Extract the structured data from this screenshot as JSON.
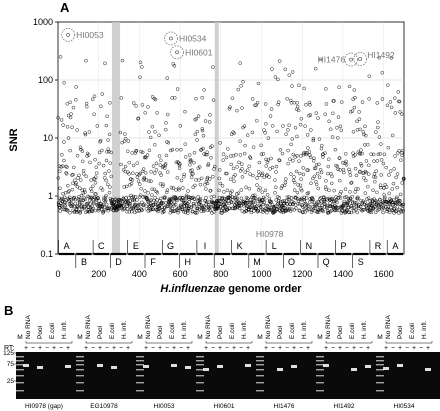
{
  "panel_a": {
    "letter": "A",
    "ylabel": "SNR",
    "xlabel_italic": "H.influenzae",
    "xlabel_rest": " genome order",
    "y_ticks": [
      "1000",
      "100",
      "10",
      "1",
      "0.1"
    ],
    "x_ticks": [
      "0",
      "200",
      "400",
      "600",
      "800",
      "1000",
      "1200",
      "1400",
      "1600"
    ],
    "annotations": [
      {
        "label": "HI0053",
        "x": 50,
        "y": 600,
        "circled": true,
        "color": "#555555"
      },
      {
        "label": "HI0534",
        "x": 555,
        "y": 520,
        "circled": true,
        "color": "#555555"
      },
      {
        "label": "HI0601",
        "x": 585,
        "y": 300,
        "circled": true,
        "color": "#555555"
      },
      {
        "label": "HI1476",
        "x": 1440,
        "y": 225,
        "circled": true,
        "color": "#555555"
      },
      {
        "label": "HI1492",
        "x": 1485,
        "y": 230,
        "circled": true,
        "color": "#555555"
      },
      {
        "label": "HI0978",
        "x": 1030,
        "y": 0.28,
        "circled": false,
        "color": "#888888"
      }
    ],
    "segments_top": [
      "A",
      "C",
      "E",
      "G",
      "I",
      "K",
      "L",
      "N",
      "P",
      "R",
      "A"
    ],
    "segments_bottom": [
      "B",
      "D",
      "F",
      "H",
      "J",
      "M",
      "O",
      "Q",
      "S"
    ],
    "shaded_regions_color": "#c8c8c8"
  },
  "chart_data": {
    "type": "scatter",
    "title": "",
    "xlabel": "H.influenzae genome order",
    "ylabel": "SNR",
    "xlim": [
      0,
      1700
    ],
    "ylim": [
      0.1,
      1000
    ],
    "log_y": true,
    "grid": true,
    "shaded_x_ranges": [
      [
        265,
        305
      ],
      [
        770,
        790
      ]
    ],
    "highlighted_points": [
      {
        "name": "HI0053",
        "x": 50,
        "y": 600
      },
      {
        "name": "HI0534",
        "x": 555,
        "y": 520
      },
      {
        "name": "HI0601",
        "x": 585,
        "y": 300
      },
      {
        "name": "HI1476",
        "x": 1440,
        "y": 225
      },
      {
        "name": "HI1492",
        "x": 1485,
        "y": 230
      },
      {
        "name": "HI0978",
        "x": 1030,
        "y": 0.28
      }
    ],
    "baseline_snr": 0.7,
    "n_points_approx": 1700
  },
  "panel_b": {
    "letter": "B",
    "rt_label": "RT:",
    "size_markers": [
      "125",
      "75",
      "25"
    ],
    "group_headers": [
      "No RNA",
      "Pool",
      "E.coli",
      "H. infl."
    ],
    "marker_lane": "M",
    "samples": [
      "HI0978 (gap)",
      "EG10978",
      "HI0053",
      "HI0601",
      "HI1476",
      "HI1492",
      "HI0534"
    ]
  }
}
